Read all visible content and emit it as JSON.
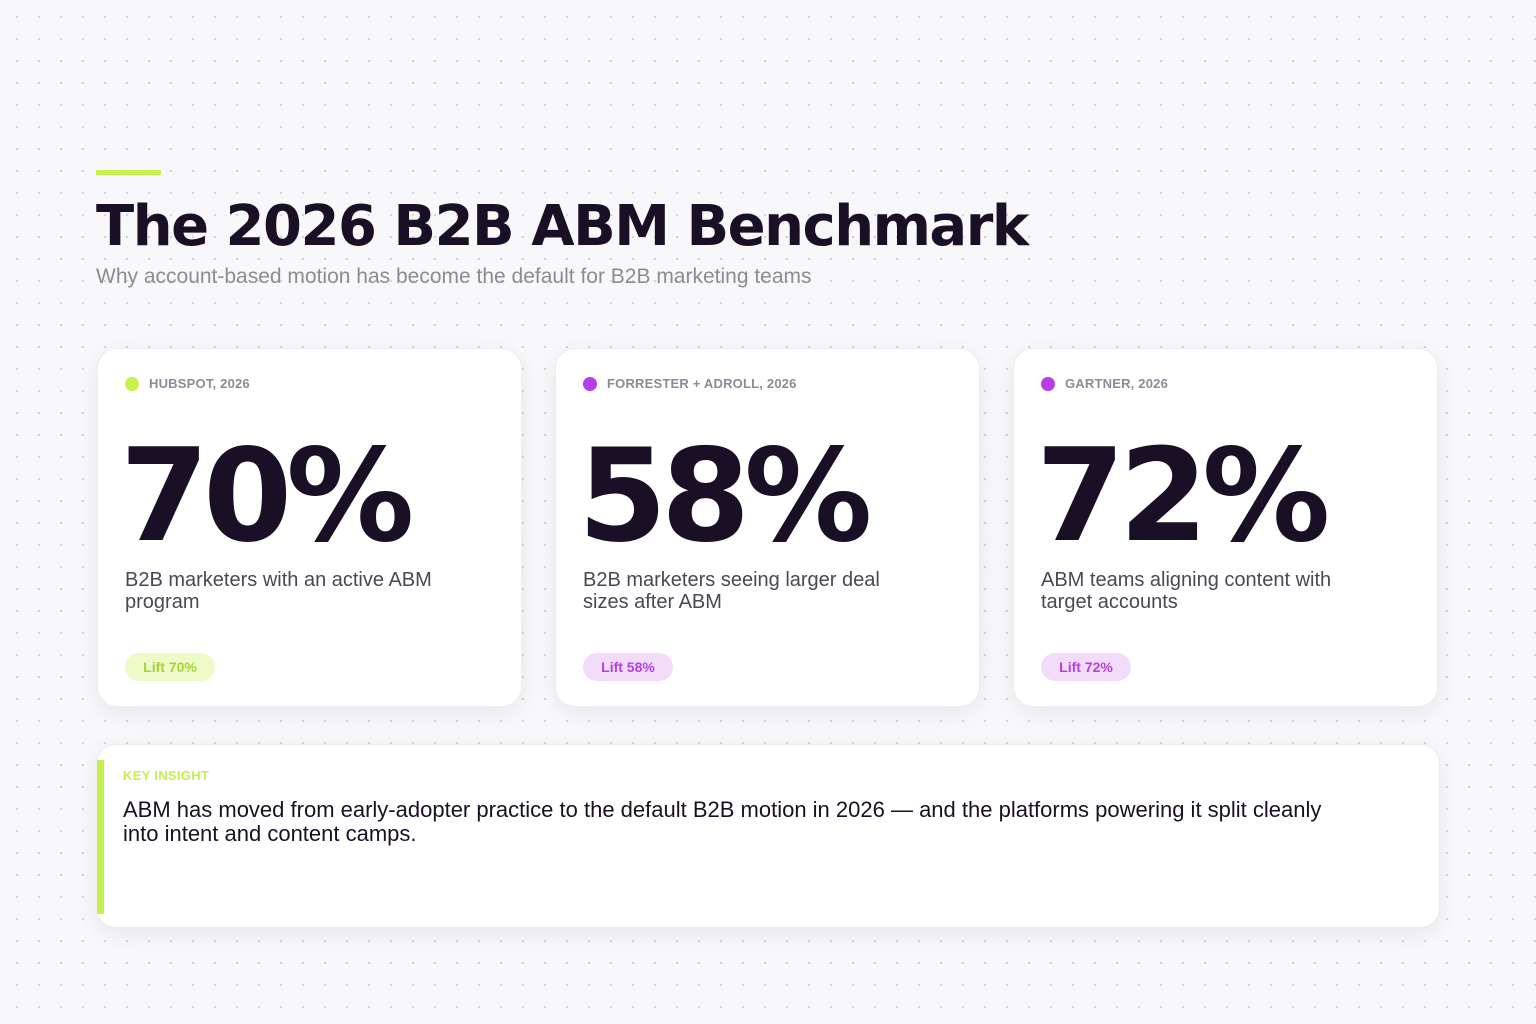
{
  "header": {
    "title": "The 2026 B2B ABM Benchmark",
    "subtitle": "Why account-based motion has become the default for B2B marketing teams"
  },
  "colors": {
    "accent_lime": "#c6f04a",
    "accent_purple": "#b73ee6",
    "text_dark": "#1a1025",
    "text_muted": "#8c8a96"
  },
  "stats": [
    {
      "source": "HUBSPOT, 2026",
      "value": "70%",
      "description": "B2B marketers with an active ABM program",
      "pill": "Lift 70%",
      "dot_color": "#c6f04a",
      "pill_bg": "#eefbc9",
      "pill_color": "#a6d433"
    },
    {
      "source": "FORRESTER + ADROLL, 2026",
      "value": "58%",
      "description": "B2B marketers seeing larger deal sizes after ABM",
      "pill": "Lift 58%",
      "dot_color": "#b73ee6",
      "pill_bg": "#f2dcfa",
      "pill_color": "#b73ee6"
    },
    {
      "source": "GARTNER, 2026",
      "value": "72%",
      "description": "ABM teams aligning content with target accounts",
      "pill": "Lift 72%",
      "dot_color": "#b73ee6",
      "pill_bg": "#f2dcfa",
      "pill_color": "#b73ee6"
    }
  ],
  "insight": {
    "label": "KEY INSIGHT",
    "text": "ABM has moved from early-adopter practice to the default B2B motion in 2026 — and the platforms powering it split cleanly into intent and content camps."
  }
}
